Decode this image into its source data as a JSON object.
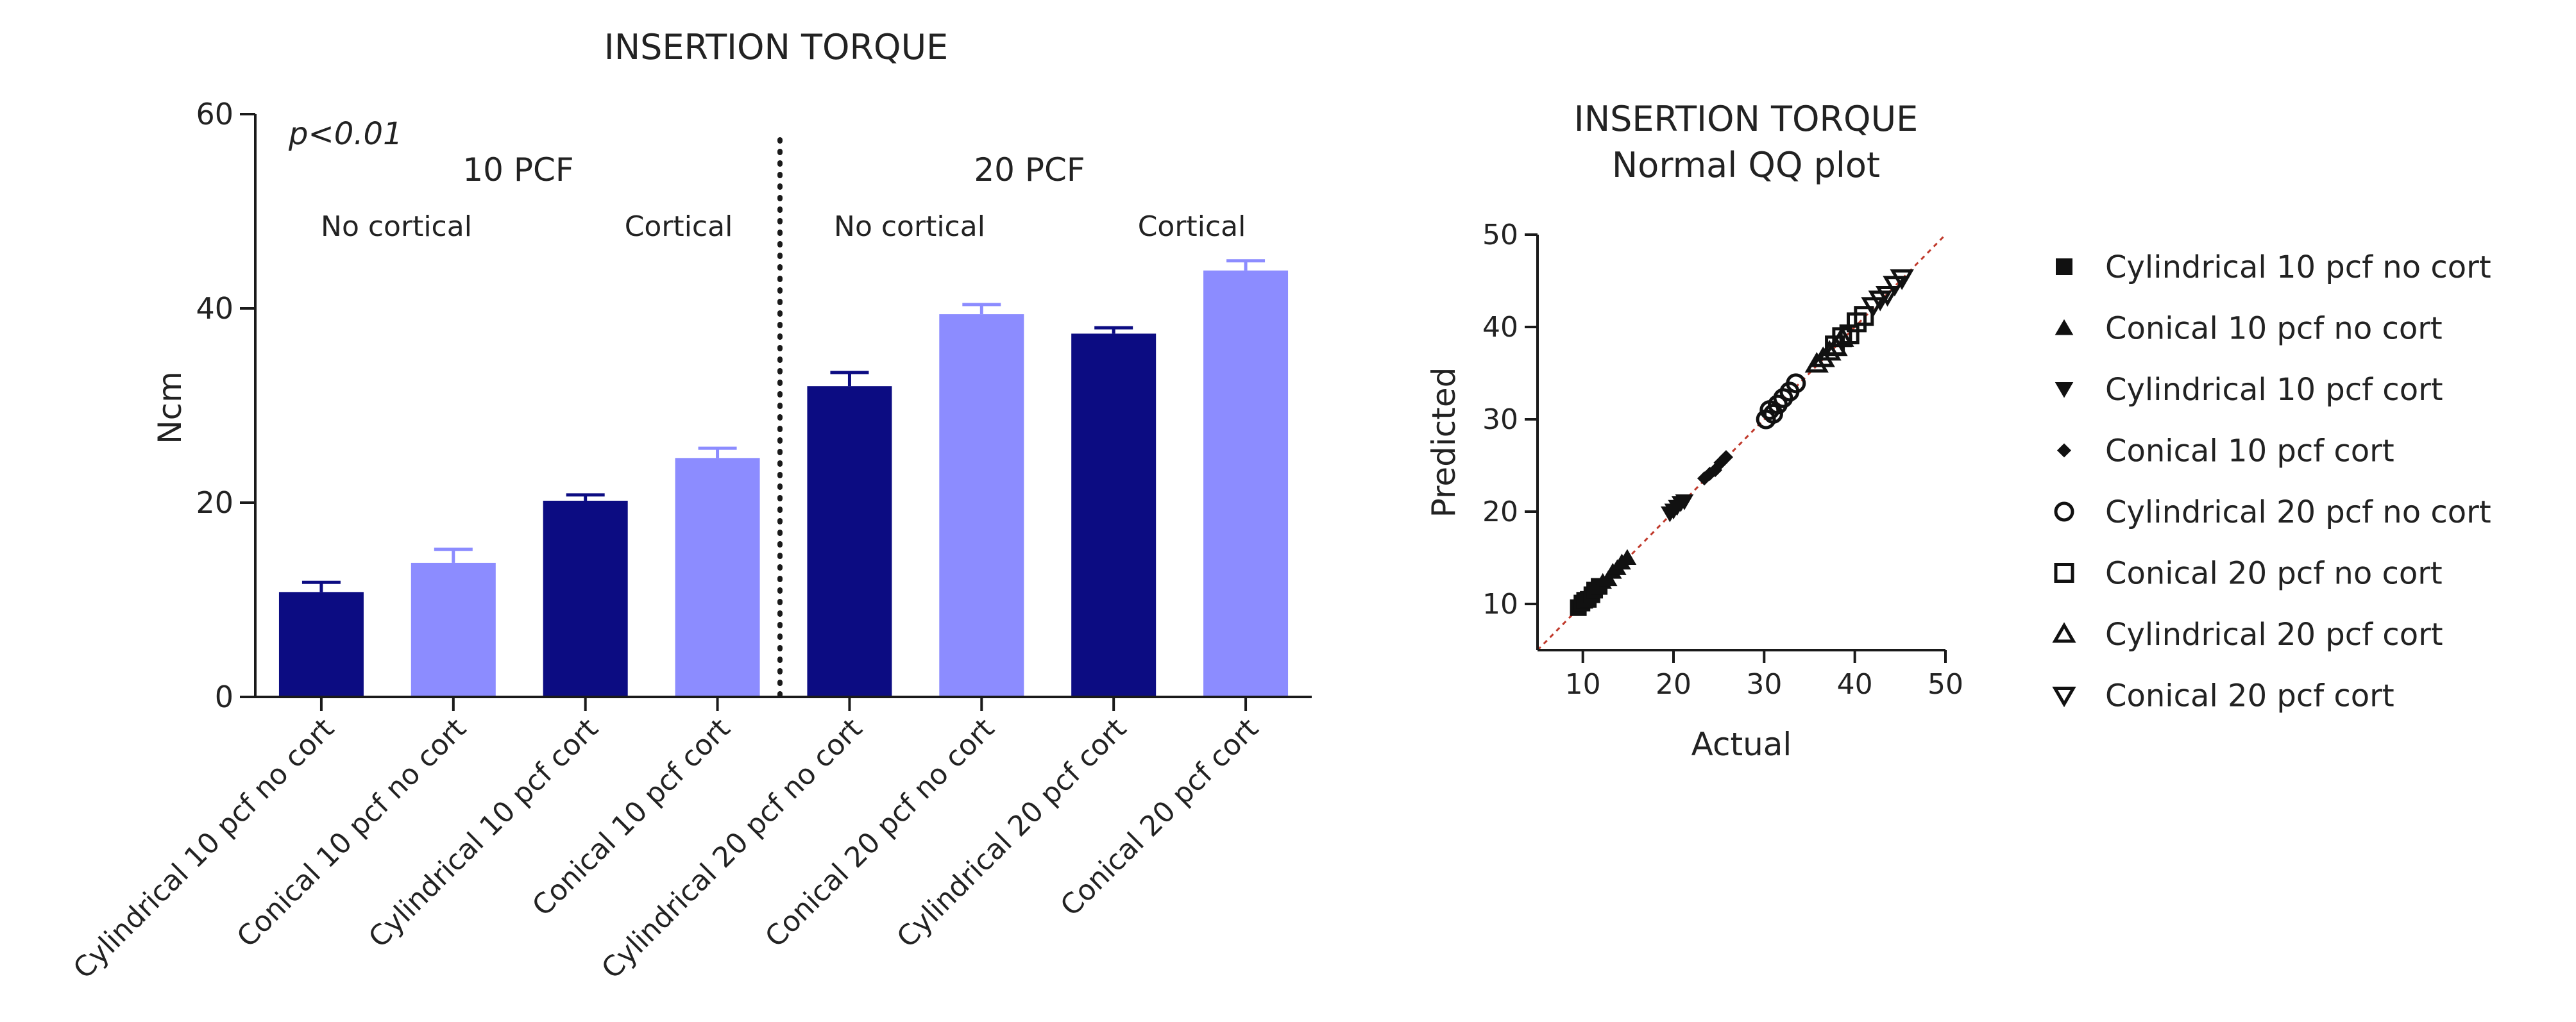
{
  "colors": {
    "dark": "#0c0c82",
    "light": "#8c8cff",
    "axis": "#1a1a1a",
    "refline": "#c0392b"
  },
  "chart_data": [
    {
      "type": "bar",
      "title": "INSERTION TORQUE",
      "ylabel": "Ncm",
      "xlabel": "",
      "ylim": [
        0,
        60
      ],
      "yticks": [
        0,
        20,
        40,
        60
      ],
      "categories": [
        "Cylindrical 10 pcf no cort",
        "Conical 10 pcf no cort",
        "Cylindrical 10 pcf cort",
        "Conical 10 pcf cort",
        "Cylindrical 20 pcf no cort",
        "Conical 20 pcf no cort",
        "Cylindrical 20 pcf cort",
        "Conical 20 pcf cort"
      ],
      "values": [
        10.8,
        13.8,
        20.2,
        24.6,
        32.0,
        39.4,
        37.4,
        43.9
      ],
      "errors": [
        1.0,
        1.4,
        0.6,
        1.0,
        1.4,
        1.0,
        0.6,
        1.0
      ],
      "bar_colors": [
        "dark",
        "light",
        "dark",
        "light",
        "dark",
        "light",
        "dark",
        "light"
      ],
      "annotations": {
        "pvalue": "p<0.01",
        "group_left": "10 PCF",
        "group_right": "20 PCF",
        "sub_1": "No cortical",
        "sub_2": "Cortical",
        "sub_3": "No cortical",
        "sub_4": "Cortical"
      }
    },
    {
      "type": "scatter",
      "title": "INSERTION TORQUE",
      "subtitle": "Normal QQ plot",
      "xlabel": "Actual",
      "ylabel": "Predicted",
      "xlim": [
        5,
        50
      ],
      "ylim": [
        5,
        50
      ],
      "xticks": [
        10,
        20,
        30,
        40,
        50
      ],
      "yticks": [
        10,
        20,
        30,
        40,
        50
      ],
      "reference_line": "y = x",
      "series": [
        {
          "name": "Cylindrical 10 pcf no cort",
          "marker": "square-filled",
          "points": [
            [
              9.5,
              9.6
            ],
            [
              9.9,
              10.1
            ],
            [
              10.2,
              10.4
            ],
            [
              10.6,
              10.5
            ],
            [
              11.0,
              11.0
            ],
            [
              11.3,
              11.5
            ],
            [
              11.8,
              11.9
            ]
          ]
        },
        {
          "name": "Conical 10 pcf no cort",
          "marker": "triangle-up-filled",
          "points": [
            [
              12.2,
              12.4
            ],
            [
              12.8,
              12.7
            ],
            [
              13.3,
              13.5
            ],
            [
              13.8,
              13.9
            ],
            [
              14.3,
              14.5
            ],
            [
              14.9,
              15.0
            ]
          ]
        },
        {
          "name": "Cylindrical 10 pcf cort",
          "marker": "triangle-down-filled",
          "points": [
            [
              19.6,
              19.8
            ],
            [
              20.0,
              20.1
            ],
            [
              20.4,
              20.5
            ],
            [
              20.8,
              20.9
            ],
            [
              21.2,
              21.1
            ]
          ]
        },
        {
          "name": "Conical 10 pcf cort",
          "marker": "diamond-filled",
          "points": [
            [
              23.4,
              23.6
            ],
            [
              24.0,
              24.1
            ],
            [
              24.6,
              24.5
            ],
            [
              25.2,
              25.3
            ],
            [
              25.8,
              25.9
            ]
          ]
        },
        {
          "name": "Cylindrical 20 pcf no cort",
          "marker": "circle-open",
          "points": [
            [
              30.2,
              30.0
            ],
            [
              30.6,
              31.0
            ],
            [
              31.0,
              30.6
            ],
            [
              31.5,
              31.6
            ],
            [
              32.1,
              32.3
            ],
            [
              32.8,
              33.0
            ],
            [
              33.5,
              33.9
            ]
          ]
        },
        {
          "name": "Conical 20 pcf no cort",
          "marker": "square-open",
          "points": [
            [
              37.8,
              38.0
            ],
            [
              38.6,
              38.9
            ],
            [
              39.4,
              39.2
            ],
            [
              40.2,
              40.5
            ],
            [
              41.0,
              41.2
            ]
          ]
        },
        {
          "name": "Cylindrical 20 pcf cort",
          "marker": "triangle-up-open",
          "points": [
            [
              35.8,
              36.0
            ],
            [
              36.5,
              36.6
            ],
            [
              37.2,
              37.3
            ],
            [
              37.9,
              37.8
            ],
            [
              38.6,
              38.8
            ]
          ]
        },
        {
          "name": "Conical 20 pcf cort",
          "marker": "triangle-down-open",
          "points": [
            [
              42.0,
              42.3
            ],
            [
              42.8,
              43.0
            ],
            [
              43.6,
              43.5
            ],
            [
              44.4,
              44.6
            ],
            [
              45.2,
              45.3
            ]
          ]
        }
      ]
    }
  ]
}
